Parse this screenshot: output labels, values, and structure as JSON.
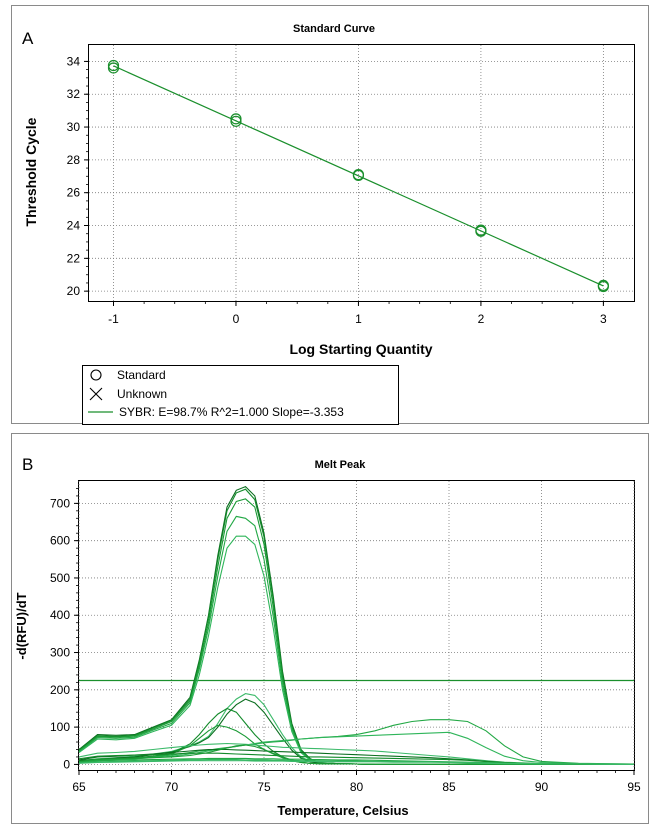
{
  "colors": {
    "series": "#1a8f2c",
    "axis": "#000000",
    "grid": "#7a7a7a",
    "border": "#555555"
  },
  "chart_data": [
    {
      "panel_label": "A",
      "type": "scatter",
      "title": "Standard Curve",
      "xlabel": "Log Starting Quantity",
      "ylabel": "Threshold Cycle",
      "xlim": [
        -1.2,
        3.25
      ],
      "ylim": [
        19.4,
        35.0
      ],
      "xticks": [
        -1,
        0,
        1,
        2,
        3
      ],
      "yticks": [
        20,
        22,
        24,
        26,
        28,
        30,
        32,
        34
      ],
      "grid": true,
      "legend_position": "bottom-left",
      "legend": [
        {
          "symbol": "circle",
          "label": "Standard"
        },
        {
          "symbol": "cross",
          "label": "Unknown"
        },
        {
          "symbol": "line",
          "label": "SYBR: E=98.7% R^2=1.000 Slope=-3.353"
        }
      ],
      "series": [
        {
          "name": "Standard",
          "points": [
            {
              "x": -1,
              "y": 33.6
            },
            {
              "x": -1,
              "y": 33.75
            },
            {
              "x": 0,
              "y": 30.35
            },
            {
              "x": 0,
              "y": 30.5
            },
            {
              "x": 1,
              "y": 27.05
            },
            {
              "x": 1,
              "y": 27.1
            },
            {
              "x": 2,
              "y": 23.65
            },
            {
              "x": 2,
              "y": 23.72
            },
            {
              "x": 3,
              "y": 20.28
            },
            {
              "x": 3,
              "y": 20.35
            }
          ]
        }
      ],
      "fit_line": {
        "x": [
          -1,
          3
        ],
        "y": [
          33.73,
          20.32
        ]
      }
    },
    {
      "panel_label": "B",
      "type": "line",
      "title": "Melt Peak",
      "xlabel": "Temperature, Celsius",
      "ylabel": "-d(RFU)/dT",
      "xlim": [
        65,
        95
      ],
      "ylim": [
        -15,
        760
      ],
      "xticks": [
        65,
        70,
        75,
        80,
        85,
        90,
        95
      ],
      "yticks": [
        0,
        100,
        200,
        300,
        400,
        500,
        600,
        700
      ],
      "grid": true,
      "threshold": 225,
      "x": [
        65,
        66,
        67,
        68,
        69,
        70,
        71,
        71.5,
        72,
        72.5,
        73,
        73.5,
        74,
        74.5,
        75,
        75.5,
        76,
        76.5,
        77,
        77.5,
        78,
        79,
        80,
        81,
        82,
        83,
        84,
        85,
        86,
        87,
        88,
        89,
        90,
        92,
        95
      ],
      "series": [
        {
          "values": [
            40,
            80,
            78,
            80,
            100,
            120,
            180,
            280,
            400,
            560,
            690,
            735,
            745,
            720,
            620,
            450,
            250,
            110,
            40,
            15,
            5,
            2,
            1,
            0,
            0,
            0,
            0,
            0,
            0,
            0,
            0,
            0,
            0,
            0,
            0
          ]
        },
        {
          "values": [
            38,
            77,
            75,
            78,
            98,
            118,
            175,
            275,
            395,
            550,
            680,
            728,
            738,
            710,
            610,
            440,
            240,
            105,
            38,
            14,
            5,
            2,
            1,
            0,
            0,
            0,
            0,
            0,
            0,
            0,
            0,
            0,
            0,
            0,
            0
          ]
        },
        {
          "values": [
            36,
            75,
            73,
            76,
            95,
            115,
            170,
            265,
            380,
            530,
            660,
            705,
            712,
            690,
            590,
            420,
            230,
            100,
            36,
            13,
            4,
            2,
            1,
            0,
            0,
            0,
            0,
            0,
            0,
            0,
            0,
            0,
            0,
            0,
            0
          ]
        },
        {
          "values": [
            34,
            72,
            70,
            73,
            92,
            110,
            165,
            255,
            365,
            505,
            625,
            665,
            660,
            640,
            550,
            395,
            215,
            95,
            34,
            12,
            4,
            2,
            1,
            0,
            0,
            0,
            0,
            0,
            0,
            0,
            0,
            0,
            0,
            0,
            0
          ]
        },
        {
          "values": [
            32,
            68,
            66,
            70,
            88,
            105,
            158,
            240,
            345,
            475,
            580,
            612,
            612,
            590,
            505,
            365,
            200,
            88,
            31,
            11,
            4,
            2,
            1,
            0,
            0,
            0,
            0,
            0,
            0,
            0,
            0,
            0,
            0,
            0,
            0
          ]
        },
        {
          "values": [
            10,
            15,
            18,
            22,
            28,
            35,
            50,
            60,
            75,
            110,
            150,
            175,
            190,
            185,
            160,
            120,
            80,
            45,
            20,
            8,
            4,
            2,
            1,
            0,
            0,
            0,
            0,
            0,
            0,
            0,
            0,
            0,
            0,
            0,
            0
          ]
        },
        {
          "values": [
            10,
            14,
            17,
            20,
            26,
            33,
            48,
            58,
            72,
            100,
            135,
            160,
            175,
            165,
            140,
            105,
            70,
            38,
            17,
            7,
            3,
            2,
            1,
            0,
            0,
            0,
            0,
            0,
            0,
            0,
            0,
            0,
            0,
            0,
            0
          ]
        },
        {
          "values": [
            8,
            12,
            15,
            18,
            22,
            30,
            55,
            80,
            110,
            135,
            150,
            140,
            110,
            80,
            55,
            35,
            20,
            10,
            5,
            3,
            2,
            1,
            1,
            0,
            0,
            0,
            0,
            0,
            0,
            0,
            0,
            0,
            0,
            0,
            0
          ]
        },
        {
          "values": [
            8,
            12,
            14,
            17,
            21,
            28,
            50,
            70,
            90,
            105,
            100,
            90,
            75,
            55,
            40,
            28,
            18,
            10,
            5,
            3,
            2,
            1,
            1,
            0,
            0,
            0,
            0,
            0,
            0,
            0,
            0,
            0,
            0,
            0,
            0
          ]
        },
        {
          "values": [
            5,
            10,
            12,
            15,
            20,
            25,
            32,
            36,
            38,
            42,
            45,
            48,
            52,
            55,
            58,
            60,
            62,
            65,
            68,
            70,
            72,
            75,
            80,
            90,
            105,
            115,
            120,
            120,
            115,
            90,
            50,
            20,
            8,
            3,
            1
          ]
        },
        {
          "values": [
            5,
            10,
            12,
            15,
            18,
            22,
            28,
            32,
            36,
            40,
            44,
            48,
            52,
            56,
            60,
            62,
            64,
            66,
            68,
            70,
            72,
            74,
            76,
            78,
            80,
            82,
            84,
            86,
            70,
            45,
            22,
            10,
            5,
            2,
            1
          ]
        },
        {
          "values": [
            20,
            30,
            32,
            35,
            40,
            45,
            50,
            52,
            54,
            55,
            56,
            55,
            54,
            52,
            50,
            48,
            46,
            45,
            44,
            43,
            42,
            40,
            38,
            36,
            32,
            28,
            24,
            20,
            15,
            10,
            6,
            4,
            2,
            1,
            0
          ]
        },
        {
          "values": [
            12,
            20,
            22,
            25,
            28,
            32,
            36,
            38,
            40,
            40,
            40,
            39,
            38,
            37,
            36,
            35,
            34,
            33,
            32,
            31,
            30,
            28,
            26,
            24,
            22,
            20,
            18,
            15,
            12,
            8,
            5,
            3,
            2,
            1,
            0
          ]
        },
        {
          "values": [
            15,
            22,
            24,
            25,
            26,
            28,
            30,
            30,
            30,
            30,
            29,
            28,
            27,
            26,
            25,
            24,
            23,
            22,
            21,
            20,
            20,
            19,
            18,
            17,
            16,
            15,
            14,
            13,
            11,
            8,
            5,
            3,
            2,
            1,
            0
          ]
        },
        {
          "values": [
            8,
            14,
            15,
            16,
            18,
            20,
            24,
            28,
            32,
            38,
            44,
            50,
            52,
            48,
            40,
            30,
            20,
            12,
            6,
            3,
            2,
            1,
            1,
            0,
            0,
            0,
            0,
            0,
            0,
            0,
            0,
            0,
            0,
            0,
            0
          ]
        },
        {
          "values": [
            6,
            10,
            11,
            12,
            13,
            14,
            15,
            15,
            16,
            16,
            16,
            16,
            16,
            15,
            15,
            15,
            14,
            14,
            14,
            13,
            13,
            12,
            12,
            11,
            10,
            9,
            8,
            7,
            6,
            5,
            4,
            3,
            2,
            1,
            0
          ]
        },
        {
          "values": [
            4,
            7,
            8,
            9,
            10,
            11,
            12,
            12,
            13,
            13,
            13,
            13,
            12,
            12,
            12,
            11,
            11,
            11,
            10,
            10,
            10,
            9,
            9,
            8,
            8,
            7,
            7,
            6,
            5,
            4,
            3,
            2,
            2,
            1,
            0
          ]
        },
        {
          "values": [
            3,
            5,
            6,
            7,
            8,
            9,
            10,
            10,
            10,
            10,
            10,
            10,
            10,
            9,
            9,
            9,
            9,
            8,
            8,
            8,
            8,
            7,
            7,
            7,
            6,
            6,
            6,
            5,
            4,
            3,
            2,
            2,
            1,
            1,
            0
          ]
        }
      ]
    }
  ]
}
